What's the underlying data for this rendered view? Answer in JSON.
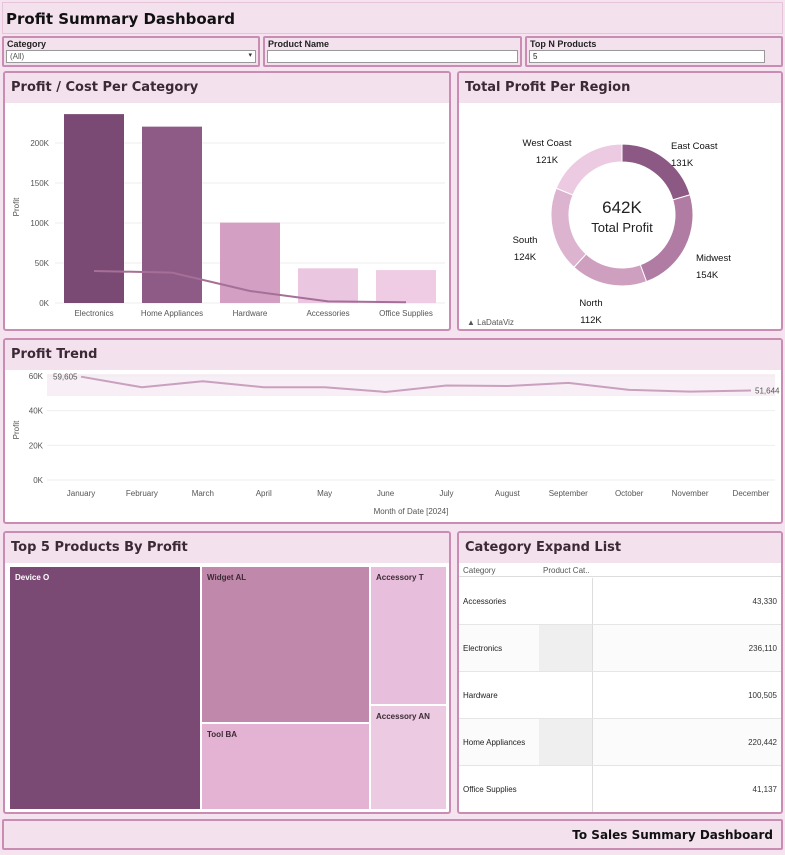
{
  "header": {
    "title": "Profit Summary Dashboard"
  },
  "filters": {
    "category": {
      "label": "Category",
      "value": "(All)"
    },
    "product_name": {
      "label": "Product Name",
      "value": ""
    },
    "top_n": {
      "label": "Top N Products",
      "value": "5"
    }
  },
  "panels": {
    "profit_cost": "Profit / Cost Per Category",
    "region": "Total Profit Per Region",
    "trend": "Profit Trend",
    "top5": "Top 5 Products By Profit",
    "expand": "Category Expand List"
  },
  "chart_data": [
    {
      "type": "bar",
      "title": "Profit / Cost Per Category",
      "ylabel": "Profit",
      "categories": [
        "Electronics",
        "Home Appliances",
        "Hardware",
        "Accessories",
        "Office Supplies"
      ],
      "series": [
        {
          "values": [
            236110,
            220442,
            100505,
            43330,
            41137
          ]
        },
        {
          "values": [
            40000,
            38000,
            15000,
            2000,
            1000
          ]
        }
      ],
      "yticks": [
        "0K",
        "50K",
        "100K",
        "150K",
        "200K"
      ],
      "ylim": [
        0,
        240000
      ],
      "colors": [
        "#7b4a74",
        "#8e5a86",
        "#d39fc2",
        "#ebc6e0",
        "#efcce4"
      ],
      "line_color": "#a56f98"
    },
    {
      "type": "pie",
      "title": "Total Profit Per Region",
      "center_value": "642K",
      "center_label": "Total Profit",
      "slices": [
        {
          "label": "East Coast",
          "value_label": "131K",
          "value": 131,
          "color": "#8c5985"
        },
        {
          "label": "Midwest",
          "value_label": "154K",
          "value": 154,
          "color": "#b07ca4"
        },
        {
          "label": "North",
          "value_label": "112K",
          "value": 112,
          "color": "#cf9fc0"
        },
        {
          "label": "South",
          "value_label": "124K",
          "value": 124,
          "color": "#dcb4d0"
        },
        {
          "label": "West Coast",
          "value_label": "121K",
          "value": 121,
          "color": "#eccbe2"
        }
      ],
      "watermark": "LaDataViz"
    },
    {
      "type": "line",
      "title": "Profit Trend",
      "ylabel": "Profit",
      "xlabel": "Month of Date [2024]",
      "x": [
        "January",
        "February",
        "March",
        "April",
        "May",
        "June",
        "July",
        "August",
        "September",
        "October",
        "November",
        "December"
      ],
      "values": [
        59605,
        53500,
        57000,
        53500,
        53500,
        50800,
        54500,
        54200,
        56000,
        52000,
        51000,
        51644
      ],
      "yticks": [
        "0K",
        "20K",
        "40K",
        "60K"
      ],
      "ylim": [
        0,
        60000
      ],
      "first_label": "59,605",
      "last_label": "51,644",
      "line_color": "#c9a0bf"
    }
  ],
  "top5": {
    "products": [
      {
        "label": "Device O",
        "color": "#7b4a74"
      },
      {
        "label": "Widget AL",
        "color": "#c088aa"
      },
      {
        "label": "Accessory T",
        "color": "#e7bedb"
      },
      {
        "label": "Tool BA",
        "color": "#e4b3d3"
      },
      {
        "label": "Accessory AN",
        "color": "#eccae1"
      }
    ]
  },
  "expand": {
    "headers": [
      "Category",
      "Product Cat.."
    ],
    "rows": [
      {
        "category": "Accessories",
        "value": "43,330"
      },
      {
        "category": "Electronics",
        "value": "236,110"
      },
      {
        "category": "Hardware",
        "value": "100,505"
      },
      {
        "category": "Home Appliances",
        "value": "220,442"
      },
      {
        "category": "Office Supplies",
        "value": "41,137"
      }
    ]
  },
  "footer": {
    "link": "To Sales Summary Dashboard"
  }
}
